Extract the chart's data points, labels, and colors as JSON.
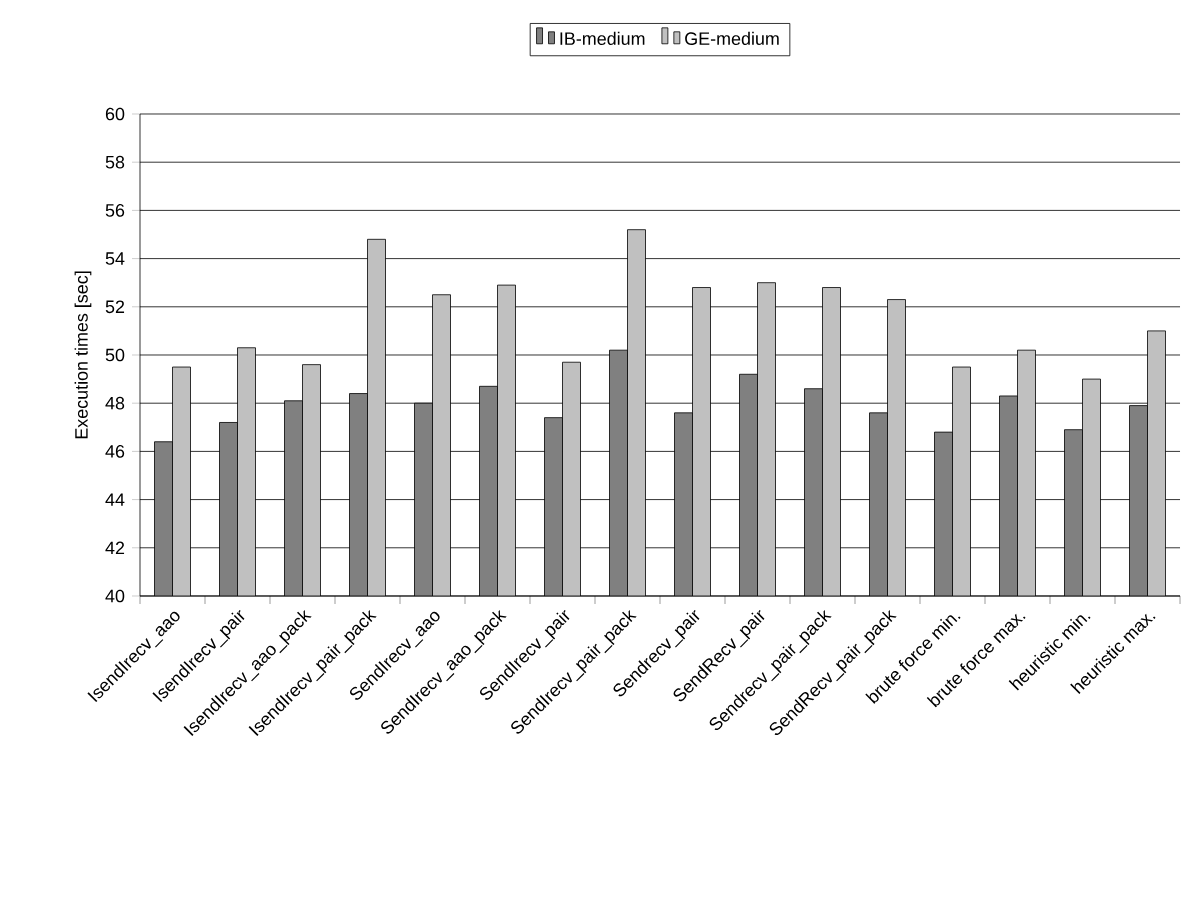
{
  "chart_data": {
    "type": "bar",
    "ylabel": "Execution times [sec]",
    "categories": [
      "IsendIrecv_aao",
      "IsendIrecv_pair",
      "IsendIrecv_aao_pack",
      "IsendIrecv_pair_pack",
      "SendIrecv_aao",
      "SendIrecv_aao_pack",
      "SendIrecv_pair",
      "SendIrecv_pair_pack",
      "Sendrecv_pair",
      "SendRecv_pair",
      "Sendrecv_pair_pack",
      "SendRecv_pair_pack",
      "brute force min.",
      "brute force max.",
      "heuristic min.",
      "heuristic max."
    ],
    "series": [
      {
        "name": "IB-medium",
        "color": "#808080",
        "values": [
          46.4,
          47.2,
          48.1,
          48.4,
          48.0,
          48.7,
          47.4,
          50.2,
          47.6,
          49.2,
          48.6,
          47.6,
          46.8,
          48.3,
          46.9,
          47.9
        ]
      },
      {
        "name": "GE-medium",
        "color": "#c0c0c0",
        "values": [
          49.5,
          50.3,
          49.6,
          54.8,
          52.5,
          52.9,
          49.7,
          55.2,
          52.8,
          53.0,
          52.8,
          52.3,
          49.5,
          50.2,
          49.0,
          51.0
        ]
      }
    ],
    "ylim": [
      40,
      60
    ],
    "yticks": [
      40,
      42,
      44,
      46,
      48,
      50,
      52,
      54,
      56,
      58,
      60
    ],
    "grid": "y",
    "legend": "top"
  }
}
